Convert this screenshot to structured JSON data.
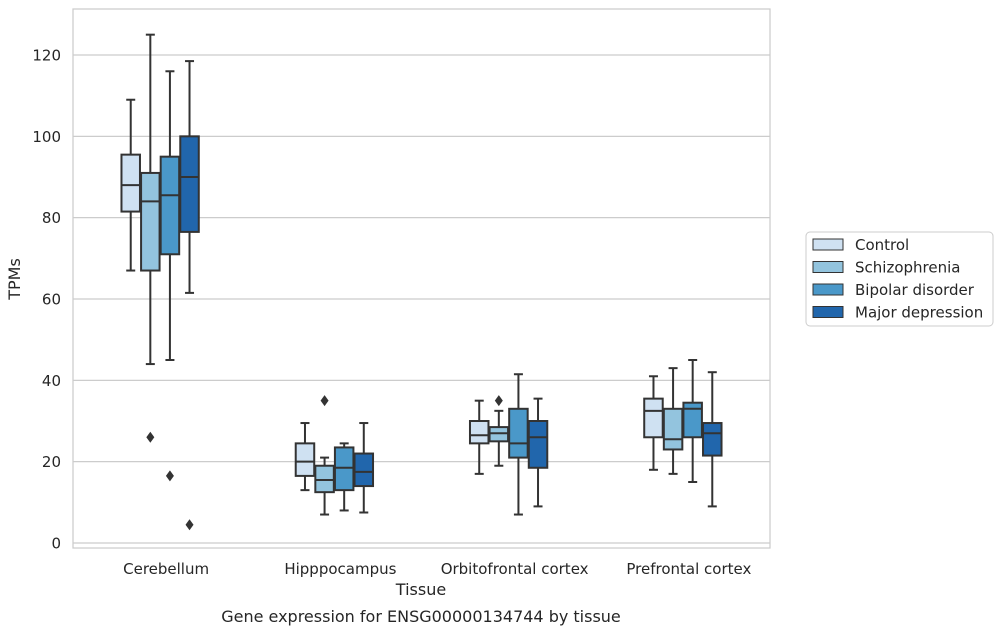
{
  "chart_data": {
    "type": "box",
    "caption": "Gene expression for ENSG00000134744 by tissue",
    "xlabel": "Tissue",
    "ylabel": "TPMs",
    "ylim": [
      -1,
      131
    ],
    "yticks": [
      0,
      20,
      40,
      60,
      80,
      100,
      120
    ],
    "grid": true,
    "legend_position": "right, outside plot",
    "categories": [
      "Cerebellum",
      "Hipppocampus",
      "Orbitofrontal cortex",
      "Prefrontal cortex"
    ],
    "series": [
      {
        "name": "Control",
        "color": "#cfe1f2",
        "boxes": [
          {
            "whisker_low": 67,
            "q1": 81.5,
            "median": 88,
            "q3": 95.5,
            "whisker_high": 109,
            "outliers": []
          },
          {
            "whisker_low": 13,
            "q1": 16.5,
            "median": 20,
            "q3": 24.5,
            "whisker_high": 29.5,
            "outliers": []
          },
          {
            "whisker_low": 17,
            "q1": 24.5,
            "median": 26.5,
            "q3": 30,
            "whisker_high": 35,
            "outliers": []
          },
          {
            "whisker_low": 18,
            "q1": 26,
            "median": 32.5,
            "q3": 35.5,
            "whisker_high": 41,
            "outliers": []
          }
        ]
      },
      {
        "name": "Schizophrenia",
        "color": "#93c4de",
        "boxes": [
          {
            "whisker_low": 44,
            "q1": 67,
            "median": 84,
            "q3": 91,
            "whisker_high": 125,
            "outliers": [
              26
            ]
          },
          {
            "whisker_low": 7,
            "q1": 12.5,
            "median": 15.5,
            "q3": 19,
            "whisker_high": 21,
            "outliers": [
              35
            ]
          },
          {
            "whisker_low": 19,
            "q1": 25,
            "median": 27,
            "q3": 28.5,
            "whisker_high": 32.5,
            "outliers": [
              35
            ]
          },
          {
            "whisker_low": 17,
            "q1": 23,
            "median": 25.5,
            "q3": 33,
            "whisker_high": 43,
            "outliers": []
          }
        ]
      },
      {
        "name": "Bipolar disorder",
        "color": "#4a98c9",
        "boxes": [
          {
            "whisker_low": 45,
            "q1": 71,
            "median": 85.5,
            "q3": 95,
            "whisker_high": 116,
            "outliers": [
              16.5
            ]
          },
          {
            "whisker_low": 8,
            "q1": 13,
            "median": 18.5,
            "q3": 23.5,
            "whisker_high": 24.5,
            "outliers": []
          },
          {
            "whisker_low": 7,
            "q1": 21,
            "median": 24.5,
            "q3": 33,
            "whisker_high": 41.5,
            "outliers": []
          },
          {
            "whisker_low": 15,
            "q1": 26,
            "median": 33,
            "q3": 34.5,
            "whisker_high": 45,
            "outliers": []
          }
        ]
      },
      {
        "name": "Major depression",
        "color": "#2166ac",
        "boxes": [
          {
            "whisker_low": 61.5,
            "q1": 76.5,
            "median": 90,
            "q3": 100,
            "whisker_high": 118.5,
            "outliers": [
              4.5
            ]
          },
          {
            "whisker_low": 7.5,
            "q1": 14,
            "median": 17.5,
            "q3": 22,
            "whisker_high": 29.5,
            "outliers": []
          },
          {
            "whisker_low": 9,
            "q1": 18.5,
            "median": 26,
            "q3": 30,
            "whisker_high": 35.5,
            "outliers": []
          },
          {
            "whisker_low": 9,
            "q1": 21.5,
            "median": 27,
            "q3": 29.5,
            "whisker_high": 42,
            "outliers": []
          }
        ]
      }
    ]
  }
}
